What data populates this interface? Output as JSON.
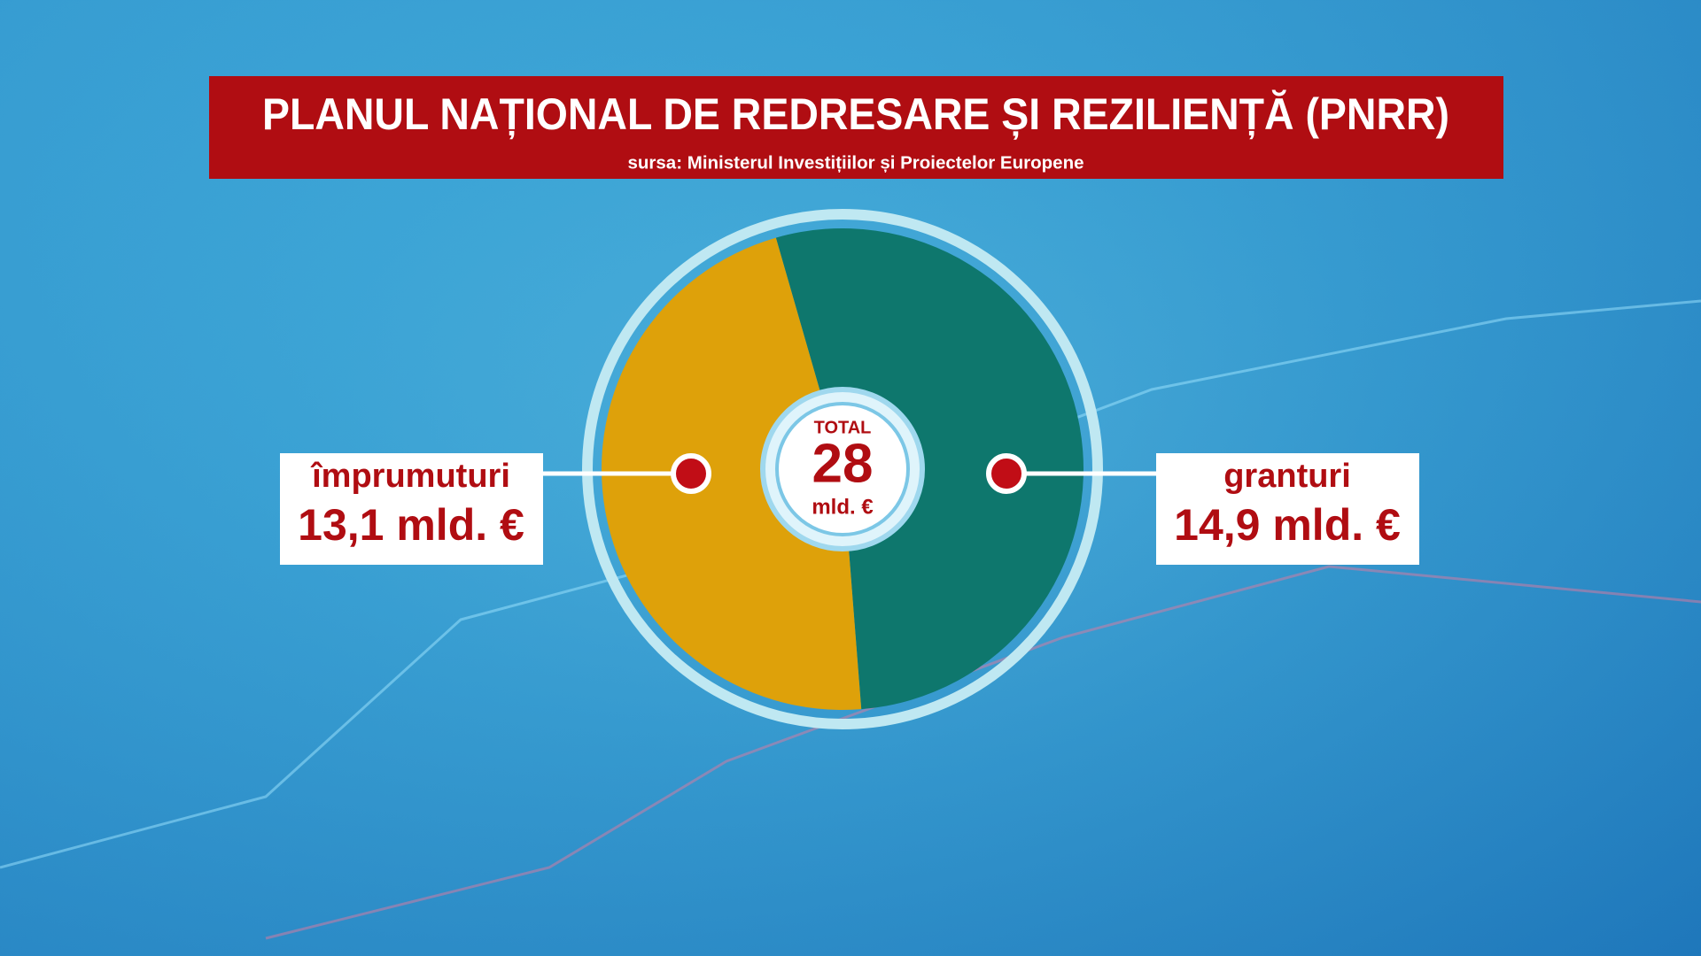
{
  "chart_data": {
    "type": "pie",
    "title": "PLANUL NAȚIONAL DE REDRESARE ȘI REZILIENȚĂ (PNRR)",
    "subtitle": "sursa: Ministerul Investițiilor și Proiectelor Europene",
    "categories": [
      "împrumuturi",
      "granturi"
    ],
    "values": [
      13.1,
      14.9
    ],
    "value_labels": [
      "13,1 mld. €",
      "14,9 mld. €"
    ],
    "colors": [
      "#dea10a",
      "#0e776d"
    ],
    "total": {
      "label": "TOTAL",
      "value": 28,
      "unit": "mld. €"
    }
  }
}
